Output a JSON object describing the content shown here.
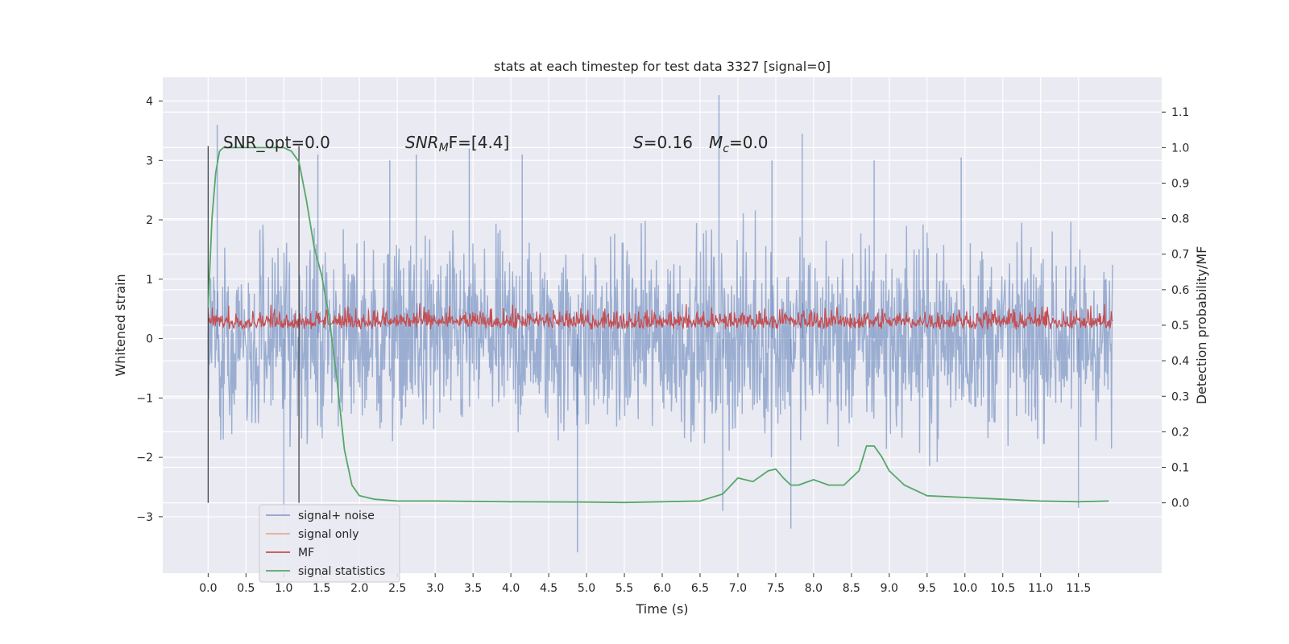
{
  "chart_data": {
    "type": "line",
    "title": "stats at each timestep for test data 3327 [signal=0]",
    "xlabel": "Time (s)",
    "ylabel": "Whitened strain",
    "ylabel_right": "Detection probability/MF",
    "xlim": [
      -0.6,
      12.6
    ],
    "ylim": [
      -3.95,
      4.4
    ],
    "ylim_right": [
      -0.198,
      1.198
    ],
    "x_ticks": [
      "0.0",
      "0.5",
      "1.0",
      "1.5",
      "2.0",
      "2.5",
      "3.0",
      "3.5",
      "4.0",
      "4.5",
      "5.0",
      "5.5",
      "6.0",
      "6.5",
      "7.0",
      "7.5",
      "8.0",
      "8.5",
      "9.0",
      "9.5",
      "10.0",
      "10.5",
      "11.0",
      "11.5"
    ],
    "y_ticks": [
      "4",
      "3",
      "2",
      "1",
      "0",
      "−1",
      "−2",
      "−3"
    ],
    "y_ticks_right": [
      "1.1",
      "1.0",
      "0.9",
      "0.8",
      "0.7",
      "0.6",
      "0.5",
      "0.4",
      "0.3",
      "0.2",
      "0.1",
      "0.0"
    ],
    "grid": true,
    "legend_position": "lower-left",
    "annotations": {
      "snr_opt": "SNR_opt=0.0",
      "snr_mf_label": "SNR",
      "snr_mf_sub": "M",
      "snr_mf_tail": "F=[4.4]",
      "s_label": "S",
      "s_value": "=0.16",
      "mc_label": "M",
      "mc_sub": "c",
      "mc_value": "=0.0"
    },
    "vlines_x": [
      0.0,
      1.2
    ],
    "series": [
      {
        "name": "signal+ noise",
        "axis": "left",
        "color": "#4c72b0",
        "description_values": "noise, roughly within [-2.5, 2.5] with spikes to 4.1 and -3.6",
        "band": [
          -2.0,
          2.1
        ],
        "spikes": [
          [
            0.12,
            3.6
          ],
          [
            1.45,
            3.1
          ],
          [
            2.4,
            3.0
          ],
          [
            2.75,
            3.1
          ],
          [
            3.45,
            3.2
          ],
          [
            4.15,
            3.1
          ],
          [
            6.75,
            4.1
          ],
          [
            7.45,
            3.0
          ],
          [
            7.85,
            3.45
          ],
          [
            8.8,
            3.0
          ],
          [
            9.95,
            3.05
          ],
          [
            4.88,
            -3.6
          ],
          [
            7.7,
            -3.2
          ],
          [
            1.0,
            -3.0
          ],
          [
            6.8,
            -2.9
          ],
          [
            11.5,
            -2.85
          ]
        ]
      },
      {
        "name": "signal only",
        "axis": "left",
        "color": "#dd8452",
        "values": []
      },
      {
        "name": "MF",
        "axis": "right",
        "color": "#c44e52",
        "description_values": "matched filter output around 0.5, band 0.46-0.57",
        "center": 0.5,
        "band": [
          0.46,
          0.57
        ]
      },
      {
        "name": "signal statistics",
        "axis": "right",
        "color": "#55a868",
        "x": [
          0.0,
          0.05,
          0.1,
          0.15,
          0.2,
          0.3,
          0.5,
          0.8,
          1.0,
          1.1,
          1.2,
          1.3,
          1.4,
          1.5,
          1.6,
          1.7,
          1.8,
          1.9,
          2.0,
          2.2,
          2.5,
          3.0,
          4.0,
          5.0,
          5.5,
          6.0,
          6.5,
          6.8,
          7.0,
          7.2,
          7.4,
          7.5,
          7.6,
          7.7,
          7.8,
          8.0,
          8.2,
          8.4,
          8.6,
          8.7,
          8.8,
          8.9,
          9.0,
          9.2,
          9.5,
          10.0,
          10.5,
          11.0,
          11.5,
          11.9
        ],
        "y": [
          0.55,
          0.8,
          0.93,
          0.99,
          1.0,
          1.0,
          1.0,
          1.0,
          1.0,
          0.99,
          0.96,
          0.85,
          0.72,
          0.64,
          0.52,
          0.35,
          0.15,
          0.05,
          0.02,
          0.01,
          0.005,
          0.005,
          0.003,
          0.002,
          0.001,
          0.003,
          0.005,
          0.025,
          0.07,
          0.06,
          0.09,
          0.095,
          0.07,
          0.05,
          0.05,
          0.065,
          0.05,
          0.05,
          0.09,
          0.16,
          0.16,
          0.13,
          0.09,
          0.05,
          0.02,
          0.015,
          0.01,
          0.005,
          0.003,
          0.005
        ]
      }
    ]
  }
}
